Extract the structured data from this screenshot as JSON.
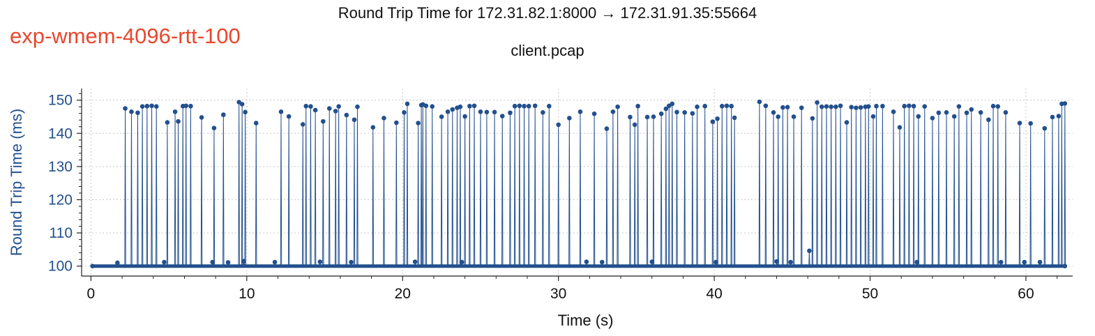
{
  "header": {
    "title": "Round Trip Time for 172.31.82.1:8000 → 172.31.91.35:55664",
    "subtitle": "client.pcap",
    "experiment_label": "exp-wmem-4096-rtt-100"
  },
  "colors": {
    "series": "#23508e",
    "experiment_label": "#e8472e",
    "grid": "#c8c8c8"
  },
  "chart_data": {
    "type": "line",
    "title": "Round Trip Time for 172.31.82.1:8000 → 172.31.91.35:55664",
    "subtitle": "client.pcap",
    "xlabel": "Time (s)",
    "ylabel": "Round Trip Time (ms)",
    "xlim": [
      -0.6,
      63
    ],
    "ylim": [
      97,
      153.5
    ],
    "xticks": [
      0,
      10,
      20,
      30,
      40,
      50,
      60
    ],
    "yticks": [
      100,
      110,
      120,
      130,
      140,
      150
    ],
    "grid": true,
    "markers": true,
    "baseline_ms": 100,
    "series": [
      {
        "points": [
          [
            0.1,
            100
          ],
          [
            1.7,
            101
          ],
          [
            2.2,
            147.5
          ],
          [
            2.6,
            146.5
          ],
          [
            3.0,
            146.2
          ],
          [
            3.3,
            148.1
          ],
          [
            3.6,
            148.2
          ],
          [
            3.9,
            148.3
          ],
          [
            4.2,
            148.1
          ],
          [
            4.7,
            101.2
          ],
          [
            4.9,
            143.3
          ],
          [
            5.4,
            146.5
          ],
          [
            5.6,
            143.6
          ],
          [
            5.9,
            148.2
          ],
          [
            6.1,
            148.3
          ],
          [
            6.4,
            148.2
          ],
          [
            7.1,
            144.8
          ],
          [
            7.8,
            101.2
          ],
          [
            7.9,
            141.6
          ],
          [
            8.5,
            145.6
          ],
          [
            8.8,
            101.1
          ],
          [
            9.5,
            149.4
          ],
          [
            9.7,
            148.8
          ],
          [
            9.8,
            101.5
          ],
          [
            9.9,
            146.4
          ],
          [
            10.6,
            143.1
          ],
          [
            11.8,
            101.2
          ],
          [
            12.2,
            146.5
          ],
          [
            12.7,
            145.1
          ],
          [
            13.6,
            142.7
          ],
          [
            13.8,
            148.2
          ],
          [
            14.1,
            148.1
          ],
          [
            14.4,
            147.0
          ],
          [
            14.7,
            101.3
          ],
          [
            14.9,
            143.6
          ],
          [
            15.3,
            147.5
          ],
          [
            15.7,
            146.7
          ],
          [
            15.9,
            148.1
          ],
          [
            16.4,
            145.5
          ],
          [
            16.7,
            101.2
          ],
          [
            16.9,
            144.1
          ],
          [
            17.1,
            148.0
          ],
          [
            18.1,
            141.8
          ],
          [
            18.8,
            144.6
          ],
          [
            19.6,
            143.2
          ],
          [
            20.1,
            146.3
          ],
          [
            20.3,
            148.9
          ],
          [
            20.8,
            101.3
          ],
          [
            21.0,
            143.1
          ],
          [
            21.2,
            148.5
          ],
          [
            21.3,
            148.7
          ],
          [
            21.5,
            148.3
          ],
          [
            21.9,
            148.1
          ],
          [
            22.5,
            145.0
          ],
          [
            22.9,
            146.5
          ],
          [
            23.2,
            147.2
          ],
          [
            23.5,
            147.7
          ],
          [
            23.7,
            148.0
          ],
          [
            23.8,
            101.2
          ],
          [
            24.0,
            145.1
          ],
          [
            24.3,
            148.2
          ],
          [
            24.6,
            148.3
          ],
          [
            25.0,
            146.5
          ],
          [
            25.4,
            146.4
          ],
          [
            25.9,
            146.4
          ],
          [
            26.4,
            145.2
          ],
          [
            26.9,
            146.2
          ],
          [
            27.2,
            148.2
          ],
          [
            27.5,
            148.3
          ],
          [
            27.8,
            148.2
          ],
          [
            28.1,
            148.2
          ],
          [
            28.5,
            148.3
          ],
          [
            29.0,
            146.3
          ],
          [
            29.4,
            148.2
          ],
          [
            30.0,
            142.6
          ],
          [
            30.7,
            144.6
          ],
          [
            31.4,
            146.5
          ],
          [
            31.8,
            101.3
          ],
          [
            32.3,
            145.9
          ],
          [
            32.8,
            101.2
          ],
          [
            33.1,
            141.4
          ],
          [
            33.5,
            146.5
          ],
          [
            33.8,
            148.0
          ],
          [
            34.6,
            144.9
          ],
          [
            34.9,
            142.6
          ],
          [
            35.1,
            148.2
          ],
          [
            35.7,
            144.9
          ],
          [
            36.0,
            101.3
          ],
          [
            36.1,
            145.0
          ],
          [
            36.6,
            145.9
          ],
          [
            36.9,
            147.4
          ],
          [
            37.1,
            148.3
          ],
          [
            37.3,
            148.9
          ],
          [
            37.6,
            146.4
          ],
          [
            38.1,
            146.3
          ],
          [
            38.6,
            146.0
          ],
          [
            38.9,
            148.0
          ],
          [
            39.4,
            148.2
          ],
          [
            39.9,
            143.5
          ],
          [
            40.1,
            101.2
          ],
          [
            40.2,
            144.4
          ],
          [
            40.5,
            148.2
          ],
          [
            40.8,
            148.3
          ],
          [
            41.1,
            148.2
          ],
          [
            41.3,
            144.7
          ],
          [
            42.9,
            149.5
          ],
          [
            43.3,
            148.3
          ],
          [
            43.8,
            146.3
          ],
          [
            44.0,
            101.4
          ],
          [
            44.1,
            145.0
          ],
          [
            44.4,
            147.8
          ],
          [
            44.7,
            147.9
          ],
          [
            44.9,
            101.2
          ],
          [
            45.1,
            145.0
          ],
          [
            45.6,
            147.7
          ],
          [
            46.1,
            104.6
          ],
          [
            46.3,
            144.5
          ],
          [
            46.6,
            149.3
          ],
          [
            46.9,
            148.0
          ],
          [
            47.2,
            148.1
          ],
          [
            47.5,
            148.0
          ],
          [
            47.8,
            148.0
          ],
          [
            48.1,
            148.3
          ],
          [
            48.5,
            143.3
          ],
          [
            48.8,
            147.9
          ],
          [
            49.1,
            147.7
          ],
          [
            49.4,
            147.8
          ],
          [
            49.7,
            148.0
          ],
          [
            49.9,
            148.1
          ],
          [
            50.2,
            145.1
          ],
          [
            50.4,
            148.2
          ],
          [
            50.8,
            148.2
          ],
          [
            51.5,
            146.5
          ],
          [
            51.9,
            141.8
          ],
          [
            52.2,
            148.2
          ],
          [
            52.5,
            148.3
          ],
          [
            52.8,
            148.2
          ],
          [
            53.0,
            101.2
          ],
          [
            53.1,
            145.1
          ],
          [
            53.5,
            148.1
          ],
          [
            54.0,
            144.6
          ],
          [
            54.4,
            146.2
          ],
          [
            54.9,
            146.3
          ],
          [
            55.4,
            145.1
          ],
          [
            55.7,
            148.1
          ],
          [
            56.2,
            146.2
          ],
          [
            56.5,
            147.2
          ],
          [
            57.1,
            146.3
          ],
          [
            57.6,
            144.1
          ],
          [
            57.9,
            148.2
          ],
          [
            58.2,
            148.1
          ],
          [
            58.4,
            101.2
          ],
          [
            58.7,
            146.3
          ],
          [
            59.6,
            143.1
          ],
          [
            59.9,
            101.2
          ],
          [
            60.3,
            143.0
          ],
          [
            60.9,
            101.2
          ],
          [
            61.2,
            141.5
          ],
          [
            61.7,
            144.9
          ],
          [
            62.1,
            145.2
          ],
          [
            62.3,
            148.9
          ],
          [
            62.5,
            149.0
          ],
          [
            62.5,
            100
          ]
        ]
      }
    ]
  }
}
